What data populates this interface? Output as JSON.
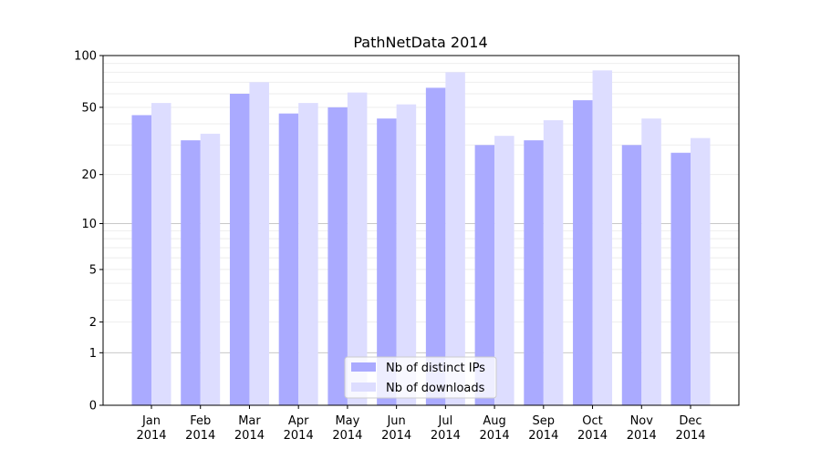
{
  "chart_data": {
    "type": "bar",
    "title": "PathNetData 2014",
    "xlabel": "",
    "ylabel": "",
    "y_scale": "log(1+y)",
    "ylim": [
      0,
      100
    ],
    "yticks": [
      0,
      1,
      2,
      5,
      10,
      20,
      50,
      100
    ],
    "grid": true,
    "legend_position": "bottom-center",
    "categories": [
      "Jan\n2014",
      "Feb\n2014",
      "Mar\n2014",
      "Apr\n2014",
      "May\n2014",
      "Jun\n2014",
      "Jul\n2014",
      "Aug\n2014",
      "Sep\n2014",
      "Oct\n2014",
      "Nov\n2014",
      "Dec\n2014"
    ],
    "series": [
      {
        "name": "Nb of distinct IPs",
        "color": "#aaaaff",
        "values": [
          45,
          32,
          60,
          46,
          50,
          43,
          65,
          30,
          32,
          55,
          30,
          27
        ]
      },
      {
        "name": "Nb of downloads",
        "color": "#ddddff",
        "values": [
          53,
          35,
          70,
          53,
          61,
          52,
          80,
          34,
          42,
          82,
          43,
          33
        ]
      }
    ]
  }
}
